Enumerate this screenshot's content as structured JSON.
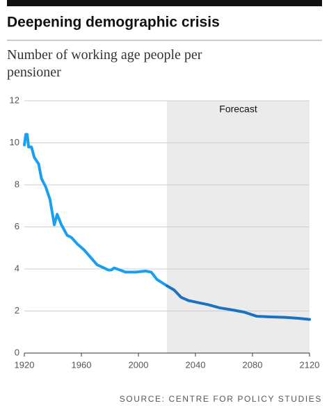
{
  "chart_data": {
    "type": "line",
    "title": "Deepening demographic crisis",
    "subtitle": "Number of working age people per pensioner",
    "source": "SOURCE: CENTRE FOR POLICY STUDIES",
    "shade": {
      "label": "Forecast",
      "from": 2020,
      "to": 2120,
      "color": "#ebebeb"
    },
    "x": [
      1920,
      1921,
      1922,
      1923,
      1925,
      1927,
      1930,
      1932,
      1935,
      1938,
      1941,
      1943,
      1946,
      1950,
      1953,
      1957,
      1962,
      1971,
      1979,
      1981,
      1983,
      1991,
      1998,
      2005,
      2009,
      2013,
      2020,
      2025,
      2030,
      2035,
      2042,
      2049,
      2057,
      2066,
      2074,
      2083,
      2093,
      2103,
      2113,
      2120
    ],
    "series": [
      {
        "color": "#1a9ff0",
        "values": [
          9.9,
          10.4,
          10.4,
          9.8,
          9.8,
          9.3,
          9.0,
          8.3,
          7.9,
          7.3,
          6.1,
          6.6,
          6.1,
          5.6,
          5.5,
          5.2,
          4.9,
          4.2,
          3.95,
          3.95,
          4.05,
          3.85,
          3.85,
          3.9,
          3.85,
          3.5,
          3.2,
          null,
          null,
          null,
          null,
          null,
          null,
          null,
          null,
          null,
          null,
          null,
          null,
          null
        ]
      },
      {
        "color": "#1a72c2",
        "values": [
          null,
          null,
          null,
          null,
          null,
          null,
          null,
          null,
          null,
          null,
          null,
          null,
          null,
          null,
          null,
          null,
          null,
          null,
          null,
          null,
          null,
          null,
          null,
          null,
          null,
          null,
          3.2,
          3.0,
          2.65,
          2.5,
          2.4,
          2.3,
          2.15,
          2.05,
          1.95,
          1.75,
          1.72,
          1.7,
          1.65,
          1.6
        ]
      }
    ],
    "xlim": [
      1920,
      2120
    ],
    "xticks": [
      1920,
      1960,
      2000,
      2040,
      2080,
      2120
    ],
    "ylim": [
      0,
      12
    ],
    "yticks": [
      0,
      2,
      4,
      6,
      8,
      10,
      12
    ],
    "grid": true
  }
}
